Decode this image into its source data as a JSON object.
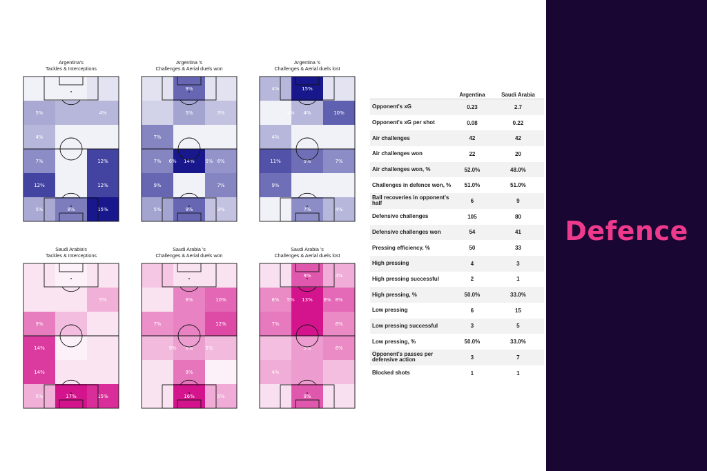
{
  "page": {
    "section_title": "Defence"
  },
  "colors": {
    "argentina": "#18188c",
    "saudi": "#d4148c",
    "panel": "#1a0633",
    "title": "#ee3a8c"
  },
  "chart_data": [
    {
      "type": "heatmap",
      "team": "argentina",
      "title": "Argentina's\nTackles & Interceptions",
      "cells": [
        [
          0,
          0,
          1
        ],
        [
          5,
          4,
          4
        ],
        [
          4,
          0,
          0
        ],
        [
          7,
          0,
          12
        ],
        [
          12,
          0,
          12
        ],
        [
          5,
          8,
          15
        ]
      ],
      "labels": [
        [
          "",
          "",
          ""
        ],
        [
          "5%",
          "",
          "4%"
        ],
        [
          "4%",
          "",
          ""
        ],
        [
          "7%",
          "",
          "12%"
        ],
        [
          "12%",
          "",
          "12%"
        ],
        [
          "5%",
          "8%",
          "15%"
        ]
      ]
    },
    {
      "type": "heatmap",
      "team": "argentina",
      "title": "Argentina 's\nChallenges & Aerial duels won",
      "cells": [
        [
          1,
          9,
          1
        ],
        [
          2,
          5,
          3
        ],
        [
          7,
          0,
          0
        ],
        [
          7,
          14,
          6
        ],
        [
          9,
          0,
          7
        ],
        [
          5,
          9,
          3
        ]
      ],
      "labels": [
        [
          "",
          "9%",
          ""
        ],
        [
          "",
          "5%",
          "3%"
        ],
        [
          "7%",
          "",
          ""
        ],
        [
          "7%",
          "14%",
          "6%"
        ],
        [
          "9%",
          "",
          "7%"
        ],
        [
          "5%",
          "9%",
          "3%"
        ]
      ],
      "sublabels": {
        "3": [
          "6%",
          "5%"
        ]
      }
    },
    {
      "type": "heatmap",
      "team": "argentina",
      "title": "Argentina 's\nChallenges & Aerial duels lost",
      "cells": [
        [
          4,
          15,
          1
        ],
        [
          0,
          4,
          10
        ],
        [
          4,
          0,
          0
        ],
        [
          11,
          9,
          7
        ],
        [
          9,
          0,
          0
        ],
        [
          0,
          7,
          4
        ]
      ],
      "labels": [
        [
          "4%",
          "15%",
          ""
        ],
        [
          "",
          "4%",
          "10%"
        ],
        [
          "4%",
          "",
          ""
        ],
        [
          "11%",
          "9%",
          "7%"
        ],
        [
          "9%",
          "",
          ""
        ],
        [
          "",
          "7%",
          "4%"
        ]
      ],
      "sublabels": {
        "1": [
          "4%",
          ""
        ]
      }
    },
    {
      "type": "heatmap",
      "team": "saudi",
      "title": "Saudi Arabia's\nTackles & Interceptions",
      "cells": [
        [
          1,
          0,
          1
        ],
        [
          1,
          1,
          5
        ],
        [
          9,
          4,
          1
        ],
        [
          14,
          0,
          1
        ],
        [
          14,
          1,
          1
        ],
        [
          5,
          17,
          15
        ]
      ],
      "labels": [
        [
          "",
          "",
          ""
        ],
        [
          "",
          "",
          "5%"
        ],
        [
          "9%",
          "",
          ""
        ],
        [
          "14%",
          "",
          ""
        ],
        [
          "14%",
          "",
          ""
        ],
        [
          "5%",
          "17%",
          "15%"
        ]
      ]
    },
    {
      "type": "heatmap",
      "team": "saudi",
      "title": "Saudi Arabia 's\nChallenges & Aerial duels won",
      "cells": [
        [
          3,
          1,
          1
        ],
        [
          1,
          8,
          10
        ],
        [
          7,
          8,
          12
        ],
        [
          4,
          6,
          4
        ],
        [
          1,
          9,
          0
        ],
        [
          1,
          16,
          5
        ]
      ],
      "labels": [
        [
          "",
          "",
          ""
        ],
        [
          "",
          "8%",
          "10%"
        ],
        [
          "7%",
          "",
          "12%"
        ],
        [
          "",
          "6%",
          ""
        ],
        [
          "",
          "9%",
          ""
        ],
        [
          "",
          "16%",
          "5%"
        ]
      ],
      "sublabels": {
        "3": [
          "9%",
          "5%"
        ]
      }
    },
    {
      "type": "heatmap",
      "team": "saudi",
      "title": "Saudi Arabia 's\nChallenges & Aerial duels lost",
      "cells": [
        [
          1,
          9,
          4
        ],
        [
          6,
          13,
          8
        ],
        [
          7,
          13,
          6
        ],
        [
          3,
          5,
          6
        ],
        [
          4,
          5,
          3
        ],
        [
          1,
          9,
          1
        ]
      ],
      "labels": [
        [
          "",
          "9%",
          "4%"
        ],
        [
          "6%",
          "13%",
          "8%"
        ],
        [
          "7%",
          "",
          "6%"
        ],
        [
          "",
          "5%",
          "6%"
        ],
        [
          "4%",
          "",
          ""
        ],
        [
          "",
          "9%",
          ""
        ]
      ],
      "sublabels": {
        "1": [
          "5%",
          "6%"
        ]
      }
    }
  ],
  "table": {
    "headers": [
      "",
      "Argentina",
      "Saudi Arabia"
    ],
    "rows": [
      [
        "Opponent's xG",
        "0.23",
        "2.7"
      ],
      [
        "Opponent's xG per shot",
        "0.08",
        "0.22"
      ],
      [
        "Air challenges",
        "42",
        "42"
      ],
      [
        "Air challenges won",
        "22",
        "20"
      ],
      [
        "Air challenges won, %",
        "52.0%",
        "48.0%"
      ],
      [
        "Challenges in defence won, %",
        "51.0%",
        "51.0%"
      ],
      [
        "Ball recoveries in opponent's half",
        "6",
        "9"
      ],
      [
        "Defensive challenges",
        "105",
        "80"
      ],
      [
        "Defensive challenges won",
        "54",
        "41"
      ],
      [
        "Pressing efficiency, %",
        "50",
        "33"
      ],
      [
        "High pressing",
        "4",
        "3"
      ],
      [
        "High pressing successful",
        "2",
        "1"
      ],
      [
        "High pressing, %",
        "50.0%",
        "33.0%"
      ],
      [
        "Low pressing",
        "6",
        "15"
      ],
      [
        "Low pressing successful",
        "3",
        "5"
      ],
      [
        "Low pressing, %",
        "50.0%",
        "33.0%"
      ],
      [
        "Opponent's passes per defensive action",
        "3",
        "7"
      ],
      [
        "Blocked shots",
        "1",
        "1"
      ]
    ]
  }
}
